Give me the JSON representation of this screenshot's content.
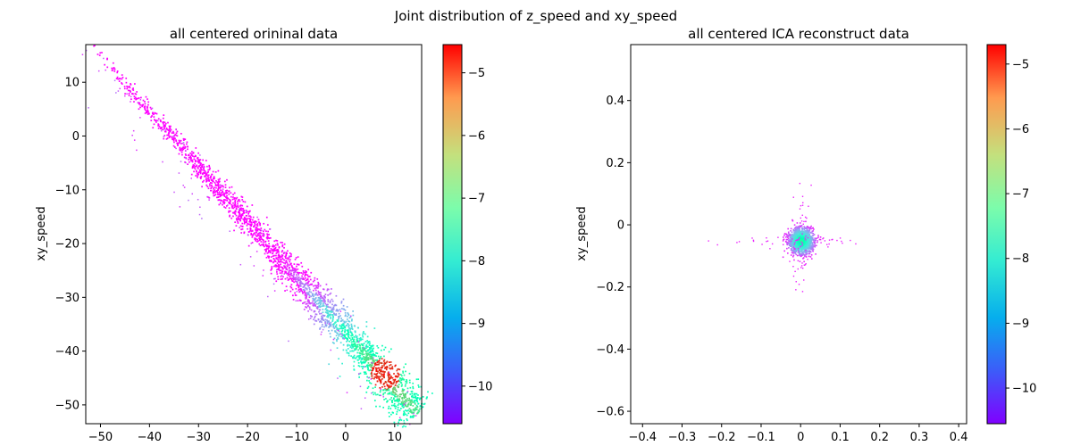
{
  "figure": {
    "suptitle": "Joint distribution of z_speed and xy_speed"
  },
  "chart_data": [
    {
      "type": "heatmap",
      "title": "all centered orininal data",
      "xlabel": "",
      "ylabel": "xy_speed",
      "xlim": [
        -53,
        15.5
      ],
      "ylim": [
        -53.5,
        17
      ],
      "xticks": [
        -50,
        -40,
        -30,
        -20,
        -10,
        0,
        10
      ],
      "yticks": [
        -50,
        -40,
        -30,
        -20,
        -10,
        0,
        10
      ],
      "grid": false,
      "colormap": "rainbow",
      "colorbar": {
        "range": [
          -10.6,
          -4.55
        ],
        "ticks": [
          -10,
          -9,
          -8,
          -7,
          -6,
          -5
        ]
      },
      "distribution": {
        "shape": "diagonal band",
        "band_start": [
          -52,
          17
        ],
        "band_end": [
          14.5,
          -51.5
        ],
        "density_peak": [
          8,
          -44
        ]
      }
    },
    {
      "type": "heatmap",
      "title": "all centered ICA reconstruct data",
      "xlabel": "",
      "ylabel": "xy_speed",
      "xlim": [
        -0.43,
        0.42
      ],
      "ylim": [
        -0.64,
        0.58
      ],
      "xticks": [
        -0.4,
        -0.3,
        -0.2,
        -0.1,
        0.0,
        0.1,
        0.2,
        0.3,
        0.4
      ],
      "yticks": [
        -0.6,
        -0.4,
        -0.2,
        0.0,
        0.2,
        0.4
      ],
      "grid": false,
      "colormap": "rainbow",
      "colorbar": {
        "range": [
          -10.55,
          -4.7
        ],
        "ticks": [
          -10,
          -9,
          -8,
          -7,
          -6,
          -5
        ]
      },
      "distribution": {
        "shape": "central cluster with cross-shaped spread",
        "center": [
          0.0,
          -0.05
        ]
      }
    }
  ]
}
